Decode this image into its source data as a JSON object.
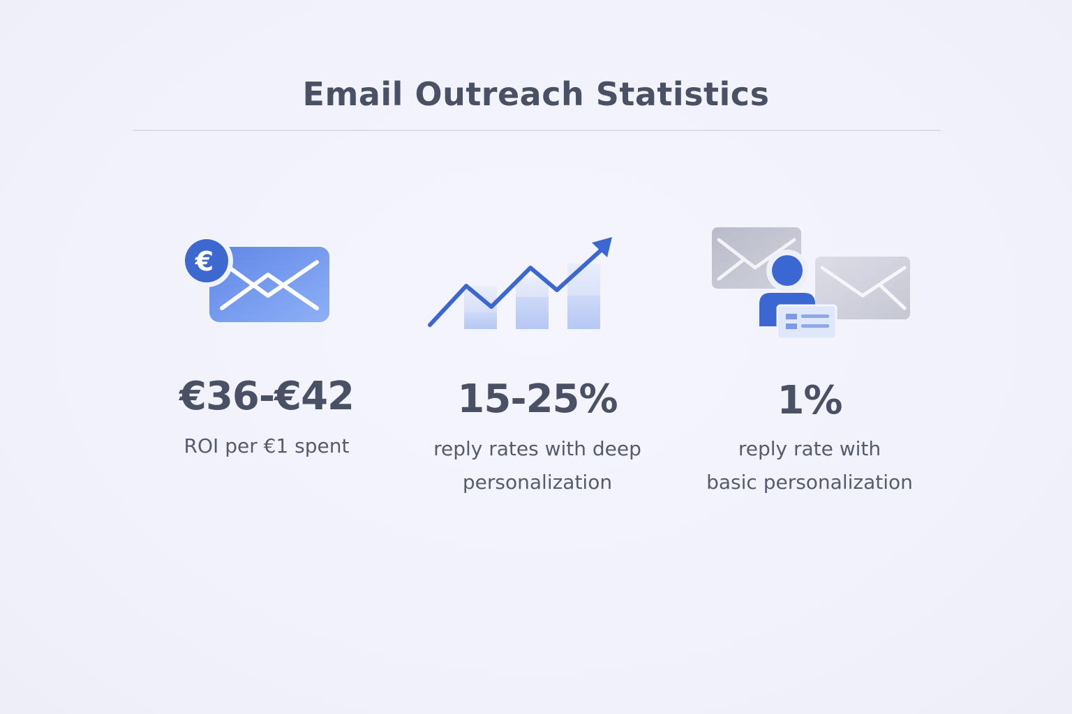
{
  "title": "Email Outreach Statistics",
  "stats": [
    {
      "icon": "euro-envelope-icon",
      "value": "€36-€42",
      "caption_lines": [
        "ROI per €1 spent"
      ]
    },
    {
      "icon": "trend-up-chart-icon",
      "value": "15-25%",
      "caption_lines": [
        "reply rates with deep",
        "personalization"
      ]
    },
    {
      "icon": "person-emails-icon",
      "value": "1%",
      "caption_lines": [
        "reply rate with",
        "basic personalization"
      ]
    }
  ],
  "colors": {
    "accent": "#3f6fd8",
    "accent_light": "#8eacf5",
    "text": "#4b5164",
    "background": "#f2f2fb",
    "gray_envelope": "#c2c4d0"
  }
}
